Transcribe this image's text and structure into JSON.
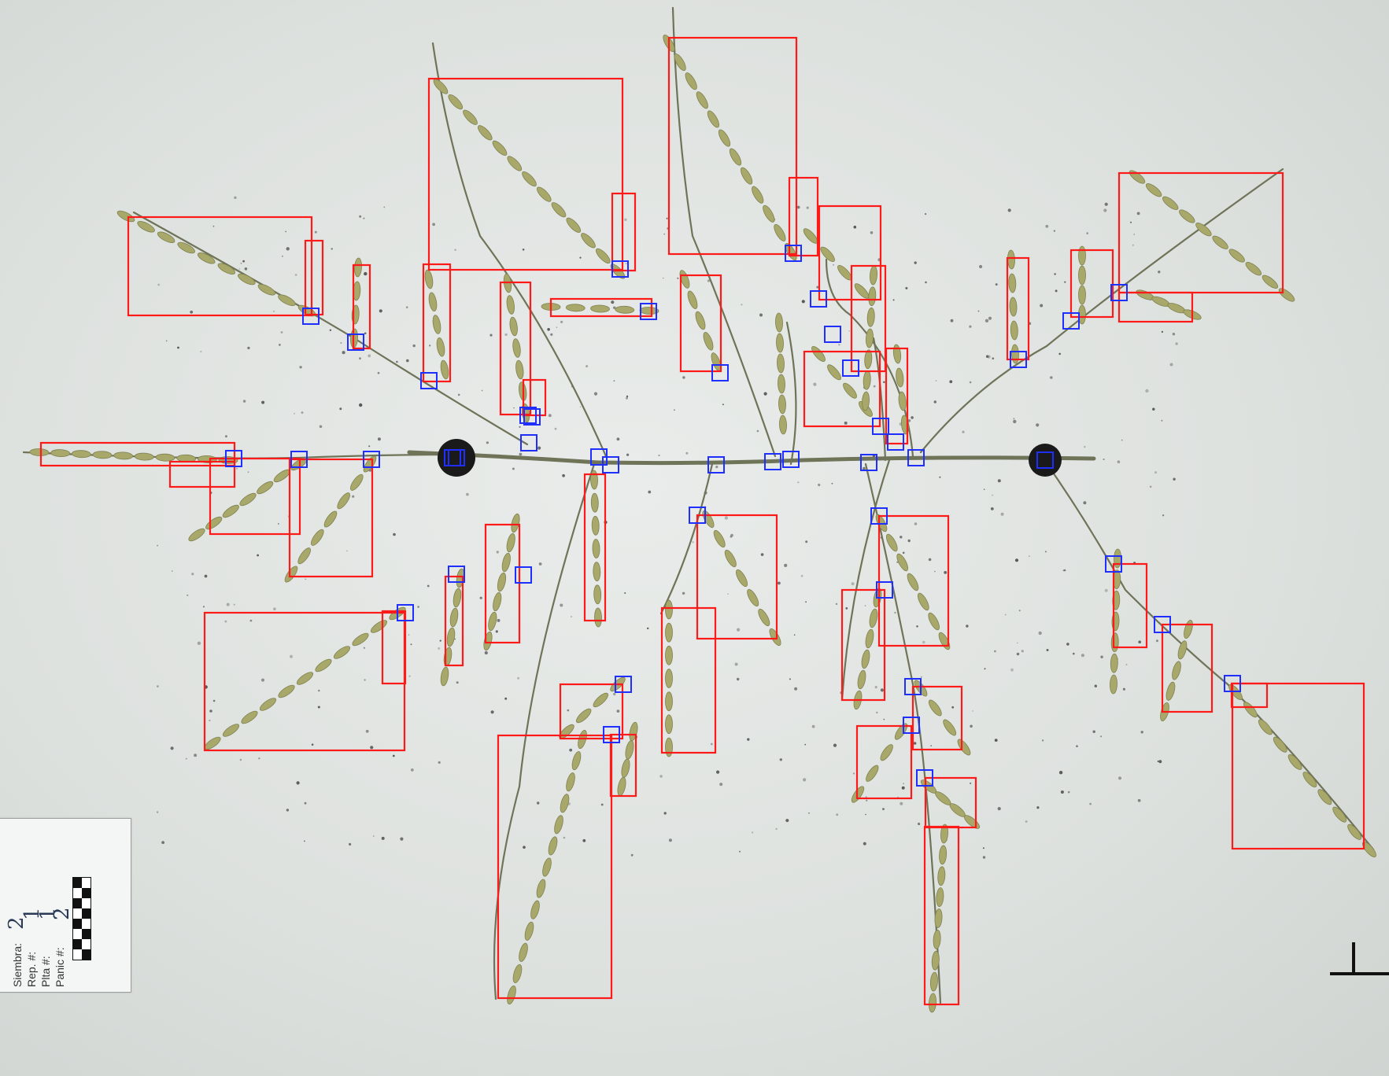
{
  "image": {
    "colors": {
      "background": "#dfe3e0",
      "panicle_stem": "#6f7358",
      "spikelet": "#a8a86a",
      "marker_dot": "#1a1a1a",
      "branch_box": "#ff1a1a",
      "node_box": "#1f2fff"
    }
  },
  "tag": {
    "fields": [
      {
        "label": "Siembra:",
        "value": "2"
      },
      {
        "label": "Rep. #:",
        "value": "1"
      },
      {
        "label": "Plta #:",
        "value": "1"
      },
      {
        "label": "Panic #:",
        "value": "2"
      }
    ],
    "scale_icon": "checkerboard-scale-icon"
  },
  "corner_mark": "T"
}
